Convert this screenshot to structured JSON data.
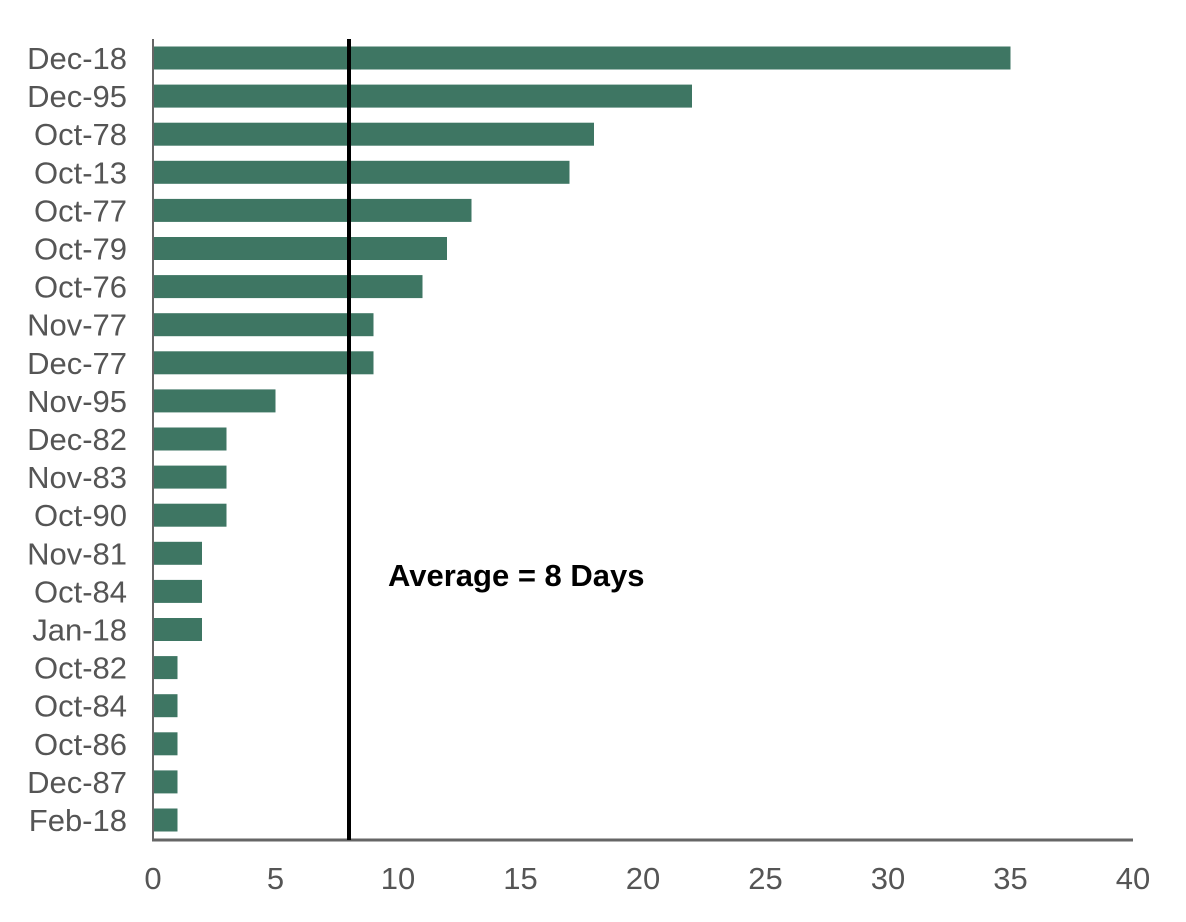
{
  "chart_data": {
    "type": "bar",
    "orientation": "horizontal",
    "title": "",
    "xlabel": "",
    "ylabel": "",
    "categories": [
      "Dec-18",
      "Dec-95",
      "Oct-78",
      "Oct-13",
      "Oct-77",
      "Oct-79",
      "Oct-76",
      "Nov-77",
      "Dec-77",
      "Nov-95",
      "Dec-82",
      "Nov-83",
      "Oct-90",
      "Nov-81",
      "Oct-84",
      "Jan-18",
      "Oct-82",
      "Oct-84",
      "Oct-86",
      "Dec-87",
      "Feb-18"
    ],
    "values": [
      35,
      22,
      18,
      17,
      13,
      12,
      11,
      9,
      9,
      5,
      3,
      3,
      3,
      2,
      2,
      2,
      1,
      1,
      1,
      1,
      1
    ],
    "xlim": [
      0,
      40
    ],
    "xticks": [
      0,
      5,
      10,
      15,
      20,
      25,
      30,
      35,
      40
    ],
    "grid": false,
    "legend": "none",
    "reference_line": {
      "value": 8,
      "label": "Average = 8 Days"
    },
    "colors": {
      "bar": "#3e7663",
      "reference_line": "#000000",
      "axis": "#666666",
      "text": "#555555"
    }
  }
}
